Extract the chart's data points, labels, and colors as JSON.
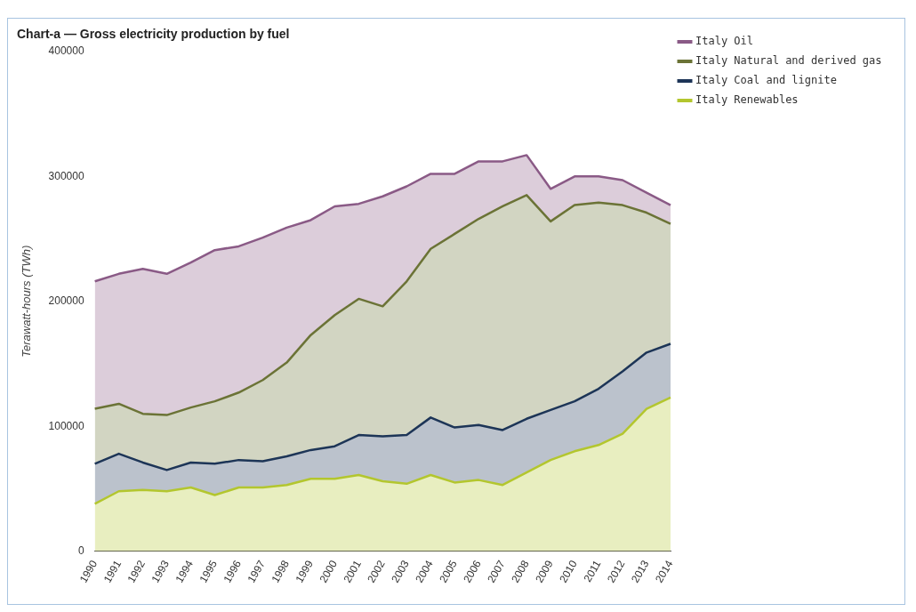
{
  "chart_data": {
    "type": "area",
    "title": "Chart-a — Gross electricity production by fuel",
    "ylabel": "Terawatt-hours (TWh)",
    "categories": [
      "1990",
      "1991",
      "1992",
      "1993",
      "1994",
      "1995",
      "1996",
      "1997",
      "1998",
      "1999",
      "2000",
      "2001",
      "2002",
      "2003",
      "2004",
      "2005",
      "2006",
      "2007",
      "2008",
      "2009",
      "2010",
      "2011",
      "2012",
      "2013",
      "2014"
    ],
    "stacked": true,
    "ylim": [
      0,
      400000
    ],
    "yticks": [
      0,
      100000,
      200000,
      300000,
      400000
    ],
    "grid": false,
    "legend": "right",
    "marker": "none",
    "series": [
      {
        "name": "Italy Renewables",
        "color": "#b3c62e",
        "values": [
          38000,
          48000,
          49000,
          48000,
          51000,
          45000,
          51000,
          51000,
          53000,
          58000,
          58000,
          61000,
          56000,
          54000,
          61000,
          55000,
          57000,
          53000,
          63000,
          73000,
          80000,
          85000,
          94000,
          114000,
          123000
        ]
      },
      {
        "name": "Italy Coal and lignite",
        "color": "#1d3557",
        "values": [
          32000,
          30000,
          22000,
          17000,
          20000,
          25000,
          22000,
          21000,
          23000,
          23000,
          26000,
          32000,
          36000,
          39000,
          46000,
          44000,
          44000,
          44000,
          43000,
          40000,
          40000,
          45000,
          50000,
          45000,
          43000
        ]
      },
      {
        "name": "Italy Natural and derived gas",
        "color": "#6b7336",
        "values": [
          44000,
          40000,
          39000,
          44000,
          44000,
          50000,
          54000,
          65000,
          75000,
          92000,
          105000,
          109000,
          104000,
          123000,
          135000,
          155000,
          165000,
          179000,
          179000,
          151000,
          157000,
          149000,
          133000,
          112000,
          96000
        ]
      },
      {
        "name": "Italy Oil",
        "color": "#8a5a86",
        "values": [
          102000,
          104000,
          116000,
          113000,
          116000,
          121000,
          117000,
          114000,
          108000,
          92000,
          87000,
          76000,
          88000,
          76000,
          60000,
          48000,
          46000,
          36000,
          32000,
          26000,
          23000,
          21000,
          20000,
          16000,
          15000
        ]
      }
    ]
  }
}
